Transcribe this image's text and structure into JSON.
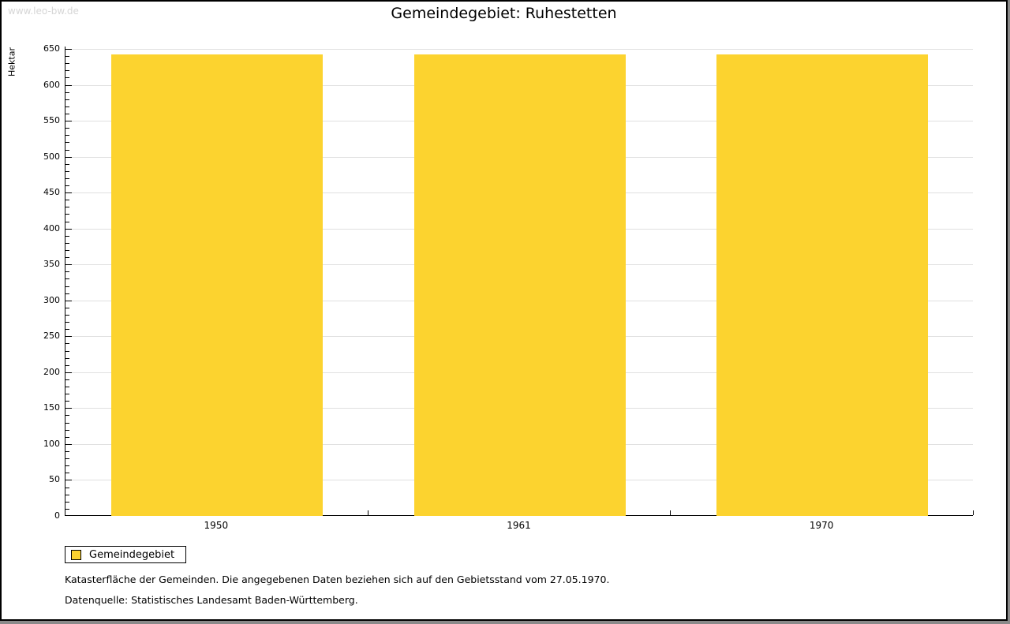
{
  "watermark": "www.leo-bw.de",
  "title": "Gemeindegebiet: Ruhestetten",
  "legend": {
    "items": [
      {
        "label": "Gemeindegebiet",
        "color": "#fcd32f"
      }
    ]
  },
  "footer": {
    "line1": "Katasterfläche der Gemeinden. Die angegebenen Daten beziehen sich auf den Gebietsstand vom 27.05.1970.",
    "line2": "Datenquelle: Statistisches Landesamt Baden-Württemberg."
  },
  "colors": {
    "bar": "#fcd32f",
    "gridline": "#e0e0e0",
    "axis": "#000000",
    "watermark": "#d6d6d6",
    "frame_border": "#000000",
    "frame_shadow": "#8a8a8a"
  },
  "chart_data": {
    "type": "bar",
    "title": "Gemeindegebiet: Ruhestetten",
    "xlabel": "",
    "ylabel": "Hektar",
    "categories": [
      "1950",
      "1961",
      "1970"
    ],
    "series": [
      {
        "name": "Gemeindegebiet",
        "values": [
          642,
          642,
          642
        ],
        "color": "#fcd32f"
      }
    ],
    "ylim": [
      0,
      650
    ],
    "y_major_step": 50,
    "y_minor_step": 10,
    "grid": true,
    "legend_position": "bottom-left",
    "unit": "Hektar"
  }
}
